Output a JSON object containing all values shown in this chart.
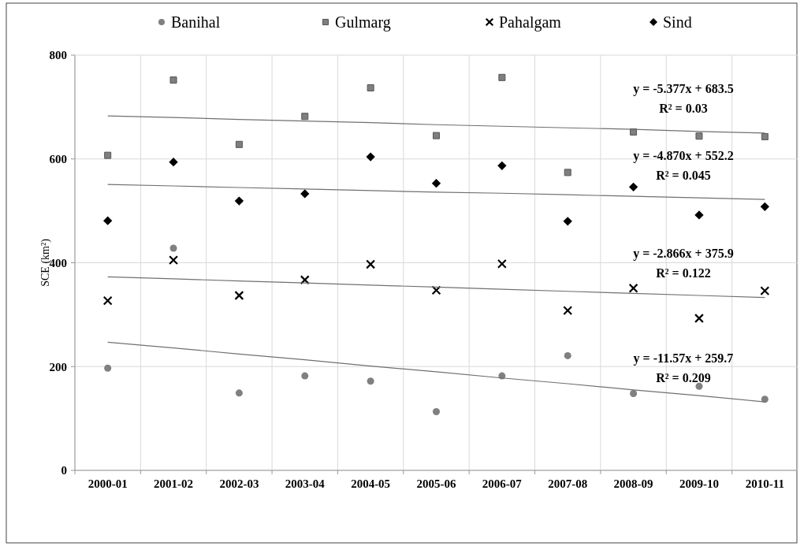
{
  "chart_data": {
    "type": "scatter",
    "ylabel": "SCE (km²)",
    "categories": [
      "2000-01",
      "2001-02",
      "2002-03",
      "2003-04",
      "2004-05",
      "2005-06",
      "2006-07",
      "2007-08",
      "2008-09",
      "2009-10",
      "2010-11"
    ],
    "ylim": [
      0,
      800
    ],
    "yticks": [
      0,
      200,
      400,
      600,
      800
    ],
    "grid": true,
    "legend": "top",
    "series": [
      {
        "name": "Banihal",
        "color": "#808080",
        "marker": "circle",
        "values": [
          197,
          428,
          149,
          182,
          172,
          113,
          182,
          221,
          148,
          162,
          137
        ]
      },
      {
        "name": "Gulmarg",
        "color": "#7f7f7f",
        "marker": "square",
        "values": [
          607,
          752,
          628,
          682,
          737,
          645,
          757,
          574,
          652,
          644,
          643
        ]
      },
      {
        "name": "Pahalgam",
        "color": "#000000",
        "marker": "cross",
        "values": [
          327,
          405,
          337,
          367,
          397,
          347,
          398,
          308,
          351,
          293,
          346
        ]
      },
      {
        "name": "Sind",
        "color": "#000000",
        "marker": "diamond",
        "values": [
          481,
          594,
          519,
          533,
          604,
          553,
          587,
          480,
          546,
          492,
          508
        ]
      },
      {
        "type": "line",
        "color": "#707070",
        "marker": "none",
        "values": [
          683,
          680,
          676,
          673,
          670,
          666,
          663,
          660,
          657,
          653,
          650
        ]
      },
      {
        "type": "line",
        "color": "#707070",
        "marker": "none",
        "values": [
          551,
          548,
          545,
          542,
          539,
          536,
          534,
          531,
          528,
          525,
          522
        ]
      },
      {
        "type": "line",
        "color": "#707070",
        "marker": "none",
        "values": [
          373,
          369,
          365,
          361,
          357,
          353,
          349,
          345,
          341,
          337,
          333
        ]
      },
      {
        "type": "line",
        "color": "#707070",
        "marker": "none",
        "values": [
          247,
          236,
          224,
          213,
          201,
          190,
          178,
          167,
          155,
          144,
          132
        ]
      }
    ],
    "annotations": [
      "y = -5.377x + 683.5",
      "R² = 0.03",
      "y = -4.870x + 552.2",
      "R² = 0.045",
      "y = -2.866x + 375.9",
      "R² = 0.122",
      "y = -11.57x + 259.7",
      "R² = 0.209"
    ]
  }
}
